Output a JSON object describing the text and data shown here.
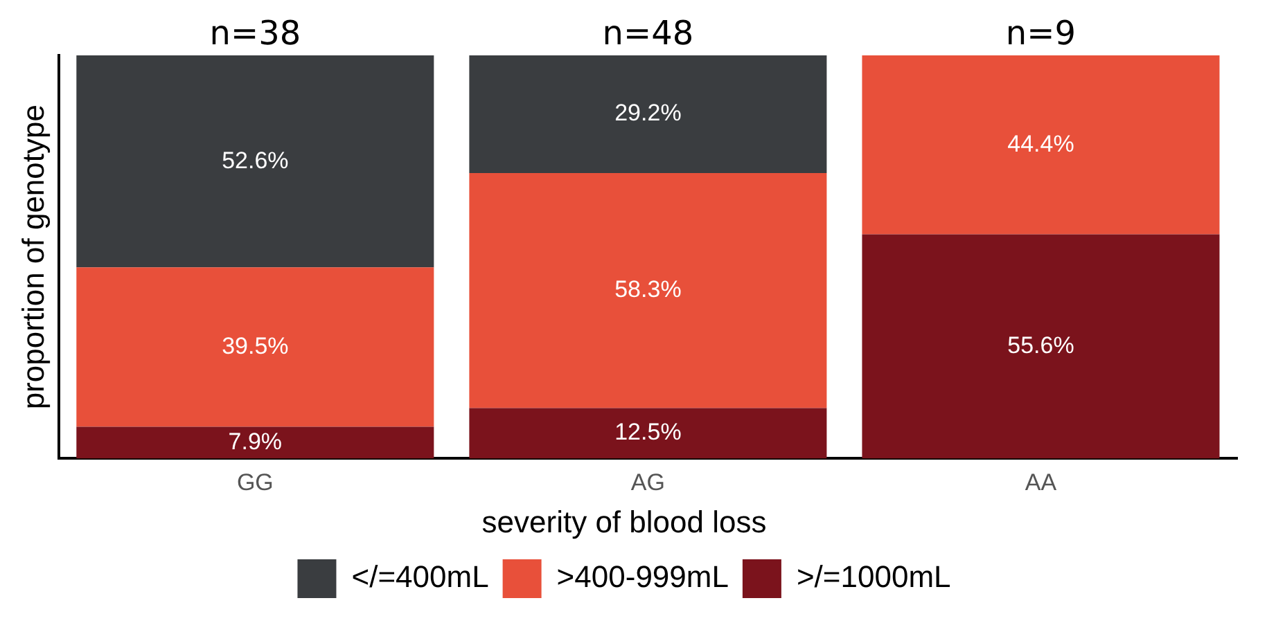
{
  "chart_data": {
    "type": "bar",
    "stacked": true,
    "ylabel": "proportion of genotype",
    "legend_title": "severity of blood loss",
    "categories": [
      "GG",
      "AG",
      "AA"
    ],
    "series": [
      {
        "name": ">/=1000mL",
        "color": "#7b131c",
        "values": [
          7.9,
          12.5,
          55.6
        ],
        "value_labels": [
          "7.9%",
          "12.5%",
          "55.6%"
        ]
      },
      {
        "name": ">400-999mL",
        "color": "#e8503a",
        "values": [
          39.5,
          58.3,
          44.4
        ],
        "value_labels": [
          "39.5%",
          "58.3%",
          "44.4%"
        ]
      },
      {
        "name": "</=400mL",
        "color": "#3a3d40",
        "values": [
          52.6,
          29.2,
          0
        ],
        "value_labels": [
          "52.6%",
          "29.2%",
          null
        ]
      }
    ],
    "ylim": [
      0,
      100
    ],
    "tick_labels": "x",
    "grid": false,
    "legend": "bottom",
    "annotations": [
      {
        "text": "n=38",
        "x": "GG",
        "y": 100
      },
      {
        "text": "n=48",
        "x": "AG",
        "y": 100
      },
      {
        "text": "n=9",
        "x": "AA",
        "y": 100
      }
    ]
  }
}
